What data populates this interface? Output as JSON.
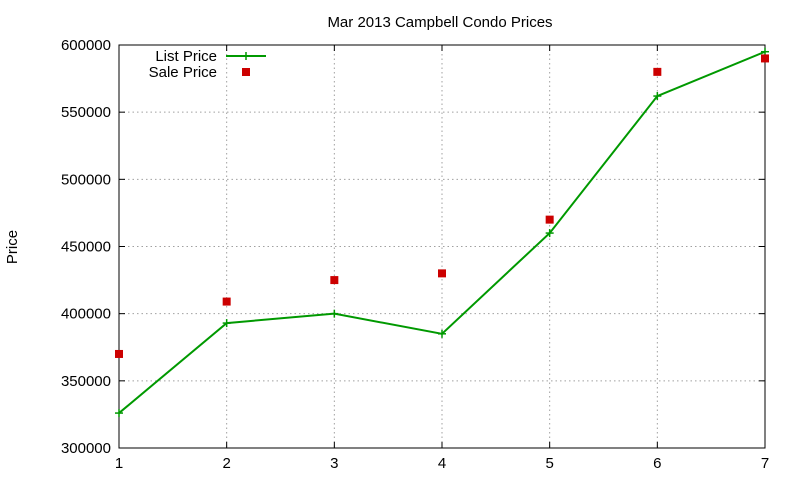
{
  "chart_data": {
    "type": "line",
    "title": "Mar 2013 Campbell Condo Prices",
    "xlabel": "",
    "ylabel": "Price",
    "x": [
      1,
      2,
      3,
      4,
      5,
      6,
      7
    ],
    "xlim": [
      1,
      7
    ],
    "ylim": [
      300000,
      600000
    ],
    "xticks": [
      "1",
      "2",
      "3",
      "4",
      "5",
      "6",
      "7"
    ],
    "yticks": [
      "300000",
      "350000",
      "400000",
      "450000",
      "500000",
      "550000",
      "600000"
    ],
    "grid": true,
    "legend_position": "top-left",
    "series": [
      {
        "name": "List Price",
        "style": "line-points",
        "marker": "plus",
        "color": "#009900",
        "values": [
          326000,
          393000,
          400000,
          385000,
          460000,
          562000,
          595000
        ]
      },
      {
        "name": "Sale Price",
        "style": "points",
        "marker": "square",
        "color": "#cc0000",
        "values": [
          370000,
          409000,
          425000,
          430000,
          470000,
          580000,
          590000
        ]
      }
    ]
  }
}
